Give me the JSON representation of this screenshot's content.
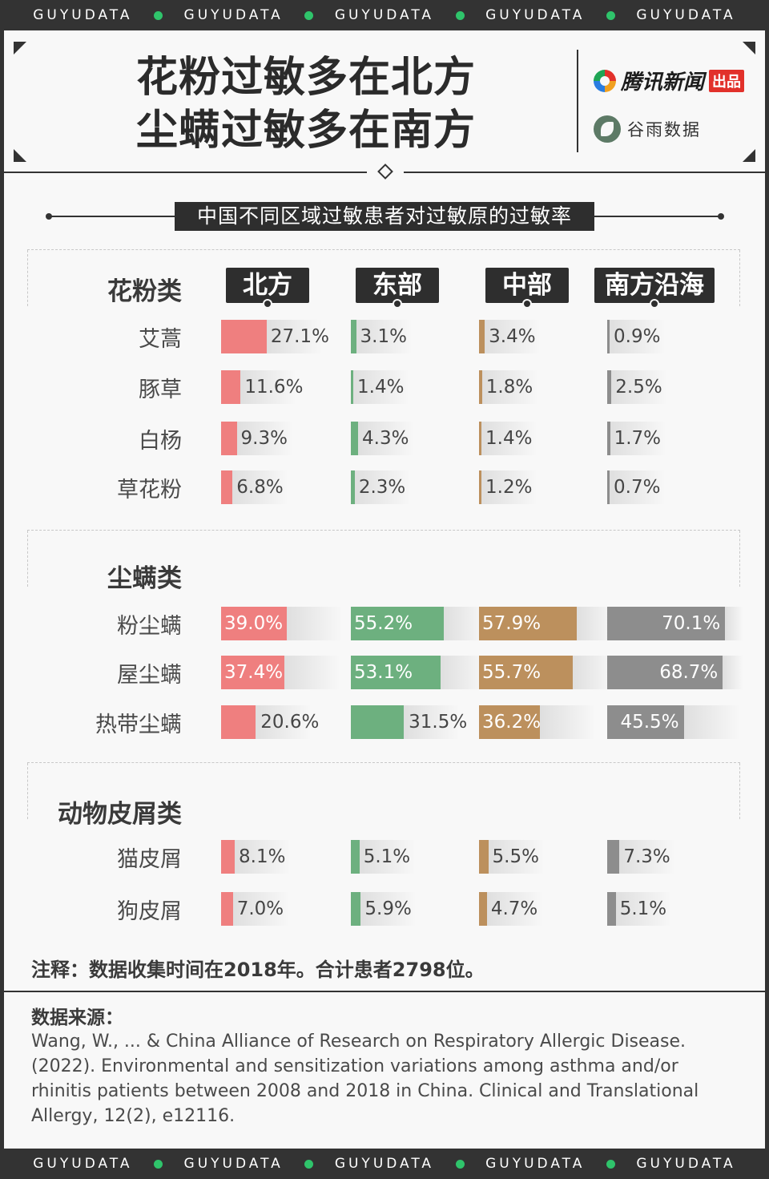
{
  "strip": {
    "words": [
      "GUYUDATA",
      "GUYUDATA",
      "GUYUDATA",
      "GUYUDATA",
      "GUYUDATA"
    ],
    "dot_color": "#2fc46b"
  },
  "header": {
    "title_line1": "花粉过敏多在北方",
    "title_line2": "尘螨过敏多在南方",
    "brand1": {
      "name": "腾讯新闻",
      "badge": "出品"
    },
    "brand2": {
      "name": "谷雨数据"
    }
  },
  "chart_data": {
    "type": "table",
    "title": "中国不同区域过敏患者对过敏原的过敏率",
    "regions": [
      "北方",
      "东部",
      "中部",
      "南方沿海"
    ],
    "region_colors": [
      "#ef7f7f",
      "#6db07f",
      "#bc905d",
      "#8d8d8d"
    ],
    "groups": [
      {
        "name": "花粉类",
        "rows": [
          {
            "label": "艾蒿",
            "values": [
              27.1,
              3.1,
              3.4,
              0.9
            ],
            "texts": [
              "27.1%",
              "3.1%",
              "3.4%",
              "0.9%"
            ]
          },
          {
            "label": "豚草",
            "values": [
              11.6,
              1.4,
              1.8,
              2.5
            ],
            "texts": [
              "11.6%",
              "1.4%",
              "1.8%",
              "2.5%"
            ]
          },
          {
            "label": "白杨",
            "values": [
              9.3,
              4.3,
              1.4,
              1.7
            ],
            "texts": [
              "9.3%",
              "4.3%",
              "1.4%",
              "1.7%"
            ]
          },
          {
            "label": "草花粉",
            "values": [
              6.8,
              2.3,
              1.2,
              0.7
            ],
            "texts": [
              "6.8%",
              "2.3%",
              "1.2%",
              "0.7%"
            ]
          }
        ]
      },
      {
        "name": "尘螨类",
        "rows": [
          {
            "label": "粉尘螨",
            "values": [
              39.0,
              55.2,
              57.9,
              70.1
            ],
            "texts": [
              "39.0%",
              "55.2%",
              "57.9%",
              "70.1%"
            ]
          },
          {
            "label": "屋尘螨",
            "values": [
              37.4,
              53.1,
              55.7,
              68.7
            ],
            "texts": [
              "37.4%",
              "53.1%",
              "55.7%",
              "68.7%"
            ]
          },
          {
            "label": "热带尘螨",
            "values": [
              20.6,
              31.5,
              36.2,
              45.5
            ],
            "texts": [
              "20.6%",
              "31.5%",
              "36.2%",
              "45.5%"
            ]
          }
        ]
      },
      {
        "name": "动物皮屑类",
        "rows": [
          {
            "label": "猫皮屑",
            "values": [
              8.1,
              5.1,
              5.5,
              7.3
            ],
            "texts": [
              "8.1%",
              "5.1%",
              "5.5%",
              "7.3%"
            ]
          },
          {
            "label": "狗皮屑",
            "values": [
              7.0,
              5.9,
              4.7,
              5.1
            ],
            "texts": [
              "7.0%",
              "5.9%",
              "4.7%",
              "5.1%"
            ]
          }
        ]
      }
    ]
  },
  "note": "注释：数据收集时间在2018年。合计患者2798位。",
  "source": {
    "title": "数据来源：",
    "text": "Wang, W., ... & China Alliance of Research on Respiratory Allergic Disease. (2022). Environmental and sensitization variations among asthma and/or rhinitis patients between 2008 and 2018 in China. Clinical and Translational Allergy, 12(2), e12116."
  }
}
